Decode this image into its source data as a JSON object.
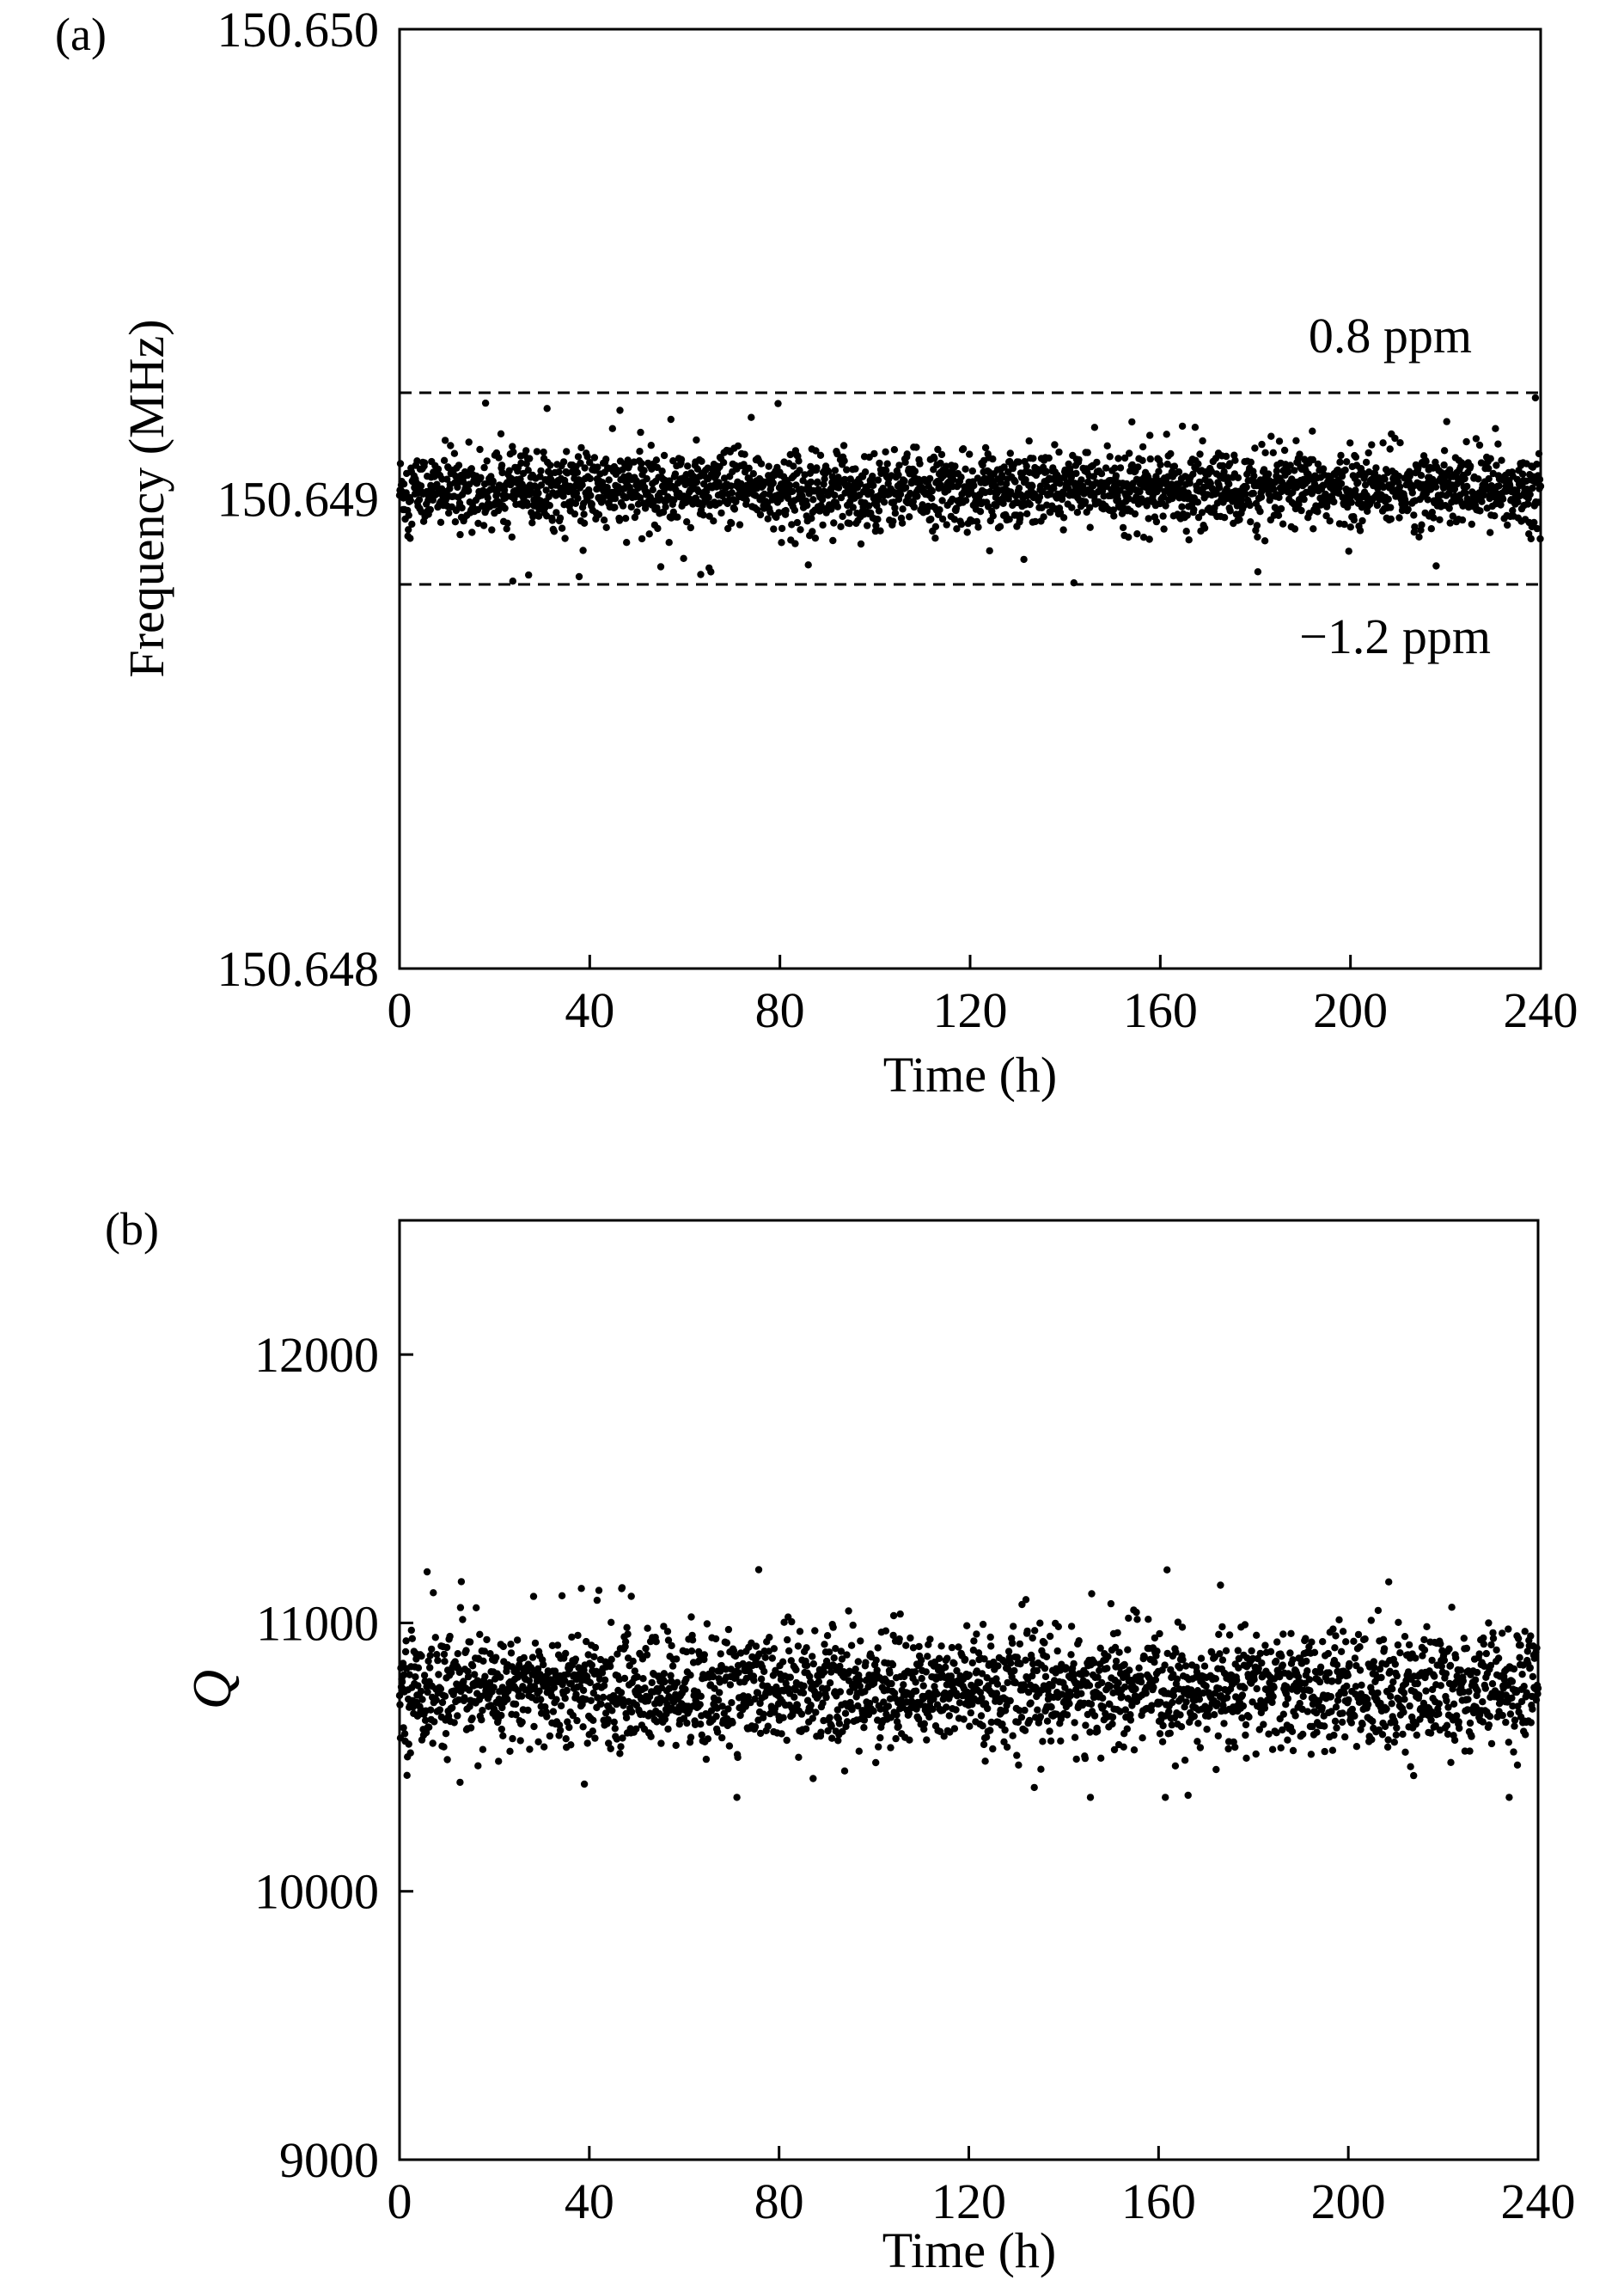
{
  "chart_data": [
    {
      "panel_label": "(a)",
      "type": "scatter",
      "xlabel": "Time (h)",
      "ylabel": "Frequency (MHz)",
      "xlim": [
        0,
        240
      ],
      "ylim": [
        150.648,
        150.65
      ],
      "x_ticks": [
        0,
        40,
        80,
        120,
        160,
        200,
        240
      ],
      "y_ticks": [
        150.648,
        150.649,
        150.65
      ],
      "y_tick_labels": [
        "150.648",
        "150.649",
        "150.650"
      ],
      "series": [
        {
          "center": 150.64902,
          "spread": 0.00012,
          "outlier_range": [
            150.64882,
            150.64922
          ]
        }
      ],
      "reference_lines": [
        {
          "value": 150.649226,
          "label": "0.8 ppm",
          "style": "dashed"
        },
        {
          "value": 150.648818,
          "label": "−1.2 ppm",
          "style": "dashed"
        }
      ],
      "grid": false,
      "legend": "none",
      "marker_color": "#000000"
    },
    {
      "panel_label": "(b)",
      "type": "scatter",
      "xlabel": "Time (h)",
      "ylabel": "Q",
      "xlim": [
        0,
        240
      ],
      "ylim": [
        9000,
        12500
      ],
      "x_ticks": [
        0,
        40,
        80,
        120,
        160,
        200,
        240
      ],
      "y_ticks": [
        9000,
        10000,
        11000,
        12000
      ],
      "y_tick_labels": [
        "9000",
        "10000",
        "11000",
        "12000"
      ],
      "series": [
        {
          "center": 10750,
          "spread": 320,
          "outlier_range": [
            10350,
            11260
          ]
        }
      ],
      "grid": false,
      "legend": "none",
      "marker_color": "#000000"
    }
  ]
}
